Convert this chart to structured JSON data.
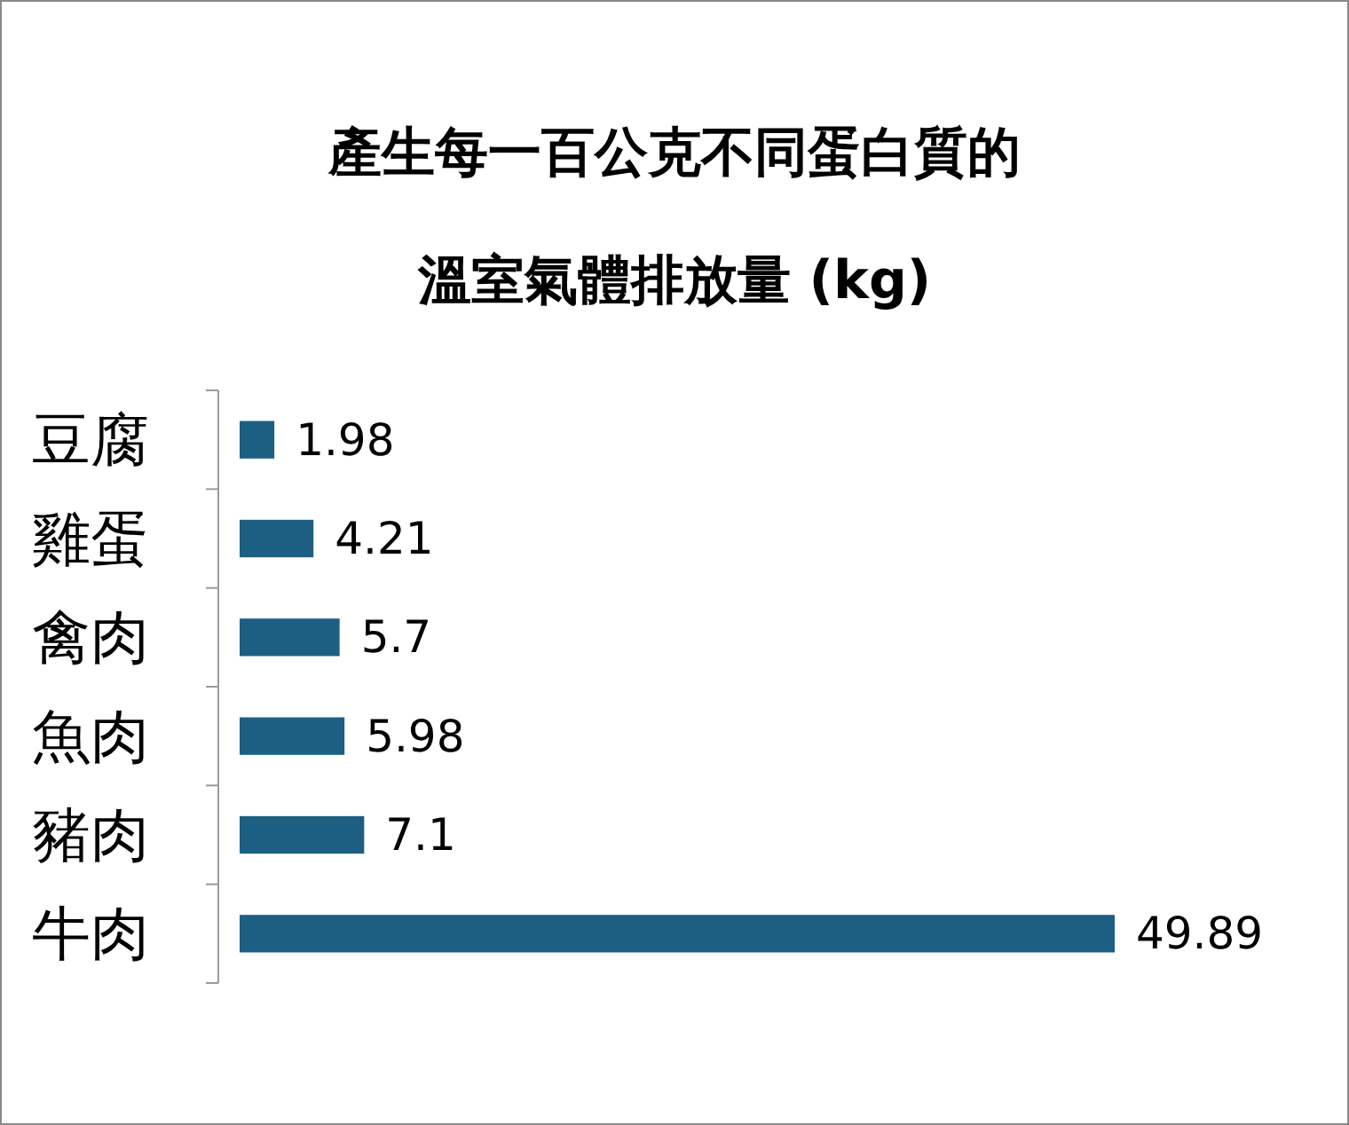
{
  "chart_data": {
    "type": "bar",
    "orientation": "horizontal",
    "title": "產生每一百公克不同蛋白質的溫室氣體排放量 (kg)",
    "categories": [
      "豆腐",
      "雞蛋",
      "禽肉",
      "魚肉",
      "豬肉",
      "牛肉"
    ],
    "values": [
      1.98,
      4.21,
      5.7,
      5.98,
      7.1,
      49.89
    ],
    "color": "#1d5f82",
    "data_labels": true
  }
}
